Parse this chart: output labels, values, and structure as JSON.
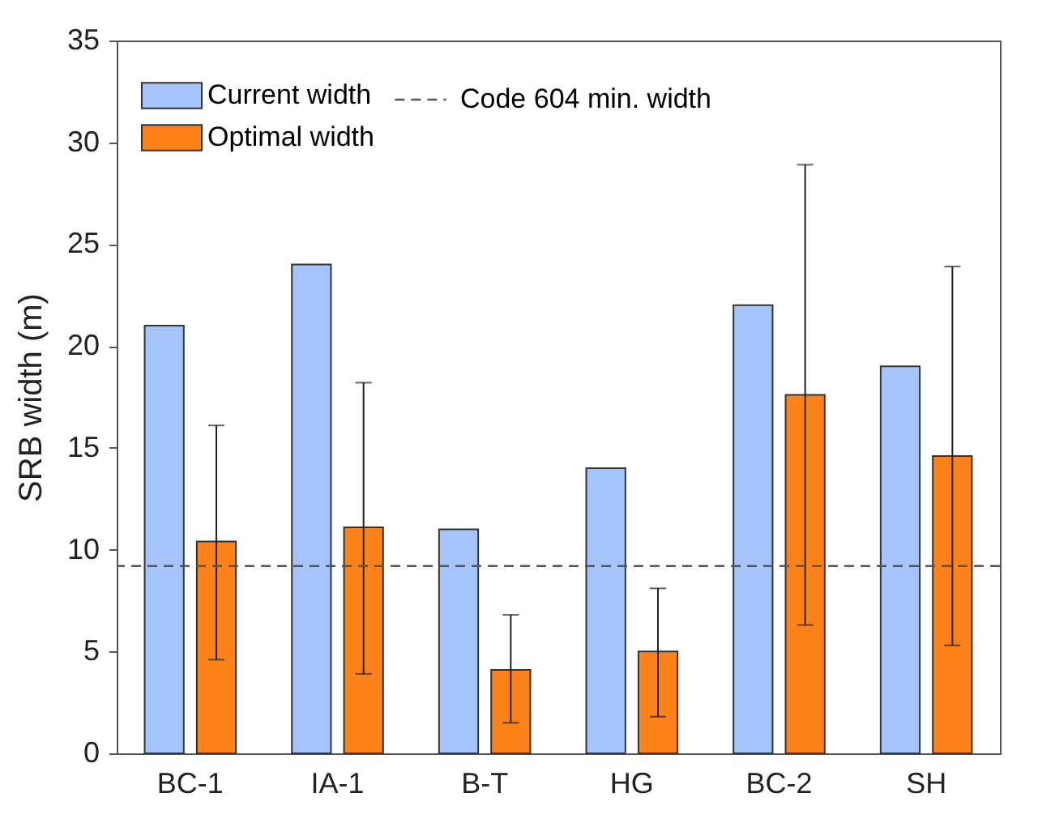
{
  "chart_data": {
    "type": "bar",
    "ylabel": "SRB width (m)",
    "categories": [
      "BC-1",
      "IA-1",
      "B-T",
      "HG",
      "BC-2",
      "SH"
    ],
    "series": [
      {
        "name": "Current width",
        "color": "#a6c4fc",
        "values": [
          21,
          24,
          11,
          14,
          22,
          19
        ]
      },
      {
        "name": "Optimal width",
        "color": "#fd8219",
        "values": [
          10.4,
          11.1,
          4.1,
          5.0,
          17.6,
          14.6
        ],
        "errors": [
          [
            4.6,
            16.1
          ],
          [
            3.9,
            18.2
          ],
          [
            1.5,
            6.8
          ],
          [
            1.8,
            8.1
          ],
          [
            6.3,
            28.9
          ],
          [
            5.3,
            23.9
          ]
        ]
      }
    ],
    "ylim": [
      0,
      35
    ],
    "yticks": [
      0,
      5,
      10,
      15,
      20,
      25,
      30,
      35
    ],
    "grid": false,
    "legend": "top left",
    "ref_lines": [
      {
        "axis": "y",
        "value": 9.2,
        "label": "Code 604 min. width",
        "color": "#555555",
        "line_style": "dashed"
      }
    ]
  }
}
